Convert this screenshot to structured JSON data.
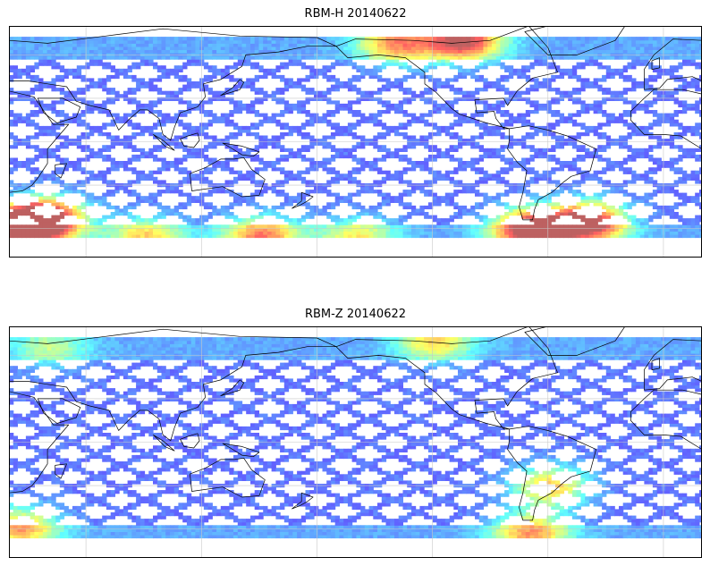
{
  "panels": [
    {
      "title": "RBM-H 20140622",
      "colormap": "jet",
      "hotspots": [
        {
          "lon": 25,
          "lat": -58,
          "intensity": 0.95
        },
        {
          "lon": 40,
          "lat": -52,
          "intensity": 0.7
        },
        {
          "lon": 290,
          "lat": -60,
          "intensity": 0.9
        },
        {
          "lon": 320,
          "lat": -55,
          "intensity": 0.85
        },
        {
          "lon": 255,
          "lat": 70,
          "intensity": 0.75
        },
        {
          "lon": 220,
          "lat": 68,
          "intensity": 0.55
        },
        {
          "lon": 150,
          "lat": -65,
          "intensity": 0.6
        },
        {
          "lon": 90,
          "lat": -65,
          "intensity": 0.45
        },
        {
          "lon": 200,
          "lat": -65,
          "intensity": 0.4
        }
      ]
    },
    {
      "title": "RBM-Z 20140622",
      "colormap": "jet",
      "hotspots": [
        {
          "lon": 25,
          "lat": -58,
          "intensity": 0.55
        },
        {
          "lon": 300,
          "lat": -30,
          "intensity": 0.55
        },
        {
          "lon": 290,
          "lat": -62,
          "intensity": 0.55
        },
        {
          "lon": 240,
          "lat": 70,
          "intensity": 0.45
        },
        {
          "lon": 40,
          "lat": 65,
          "intensity": 0.3
        }
      ]
    }
  ],
  "map": {
    "lon_range": [
      20,
      380
    ],
    "lat_range": [
      -80,
      80
    ],
    "data_lat_range": [
      -65,
      72
    ],
    "gridlines": true,
    "coastlines": true
  }
}
